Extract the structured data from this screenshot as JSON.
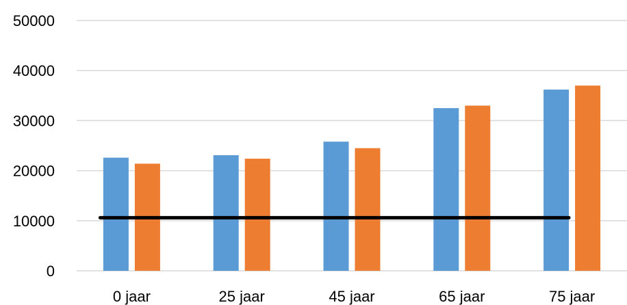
{
  "chart_data": {
    "type": "bar",
    "title": "",
    "xlabel": "",
    "ylabel": "",
    "categories": [
      "0 jaar",
      "25 jaar",
      "45 jaar",
      "65 jaar",
      "75 jaar"
    ],
    "series": [
      {
        "color": "#5b9bd5",
        "values": [
          22600,
          23100,
          25800,
          32500,
          36200
        ]
      },
      {
        "color": "#ed7d31",
        "values": [
          21400,
          22400,
          24500,
          33000,
          37000
        ]
      }
    ],
    "reference_line": {
      "value": 10600,
      "color": "#000000"
    },
    "ylim": [
      0,
      50000
    ],
    "yticks": [
      "0",
      "10000",
      "20000",
      "30000",
      "40000",
      "50000"
    ],
    "grid": true,
    "legend": "none"
  }
}
